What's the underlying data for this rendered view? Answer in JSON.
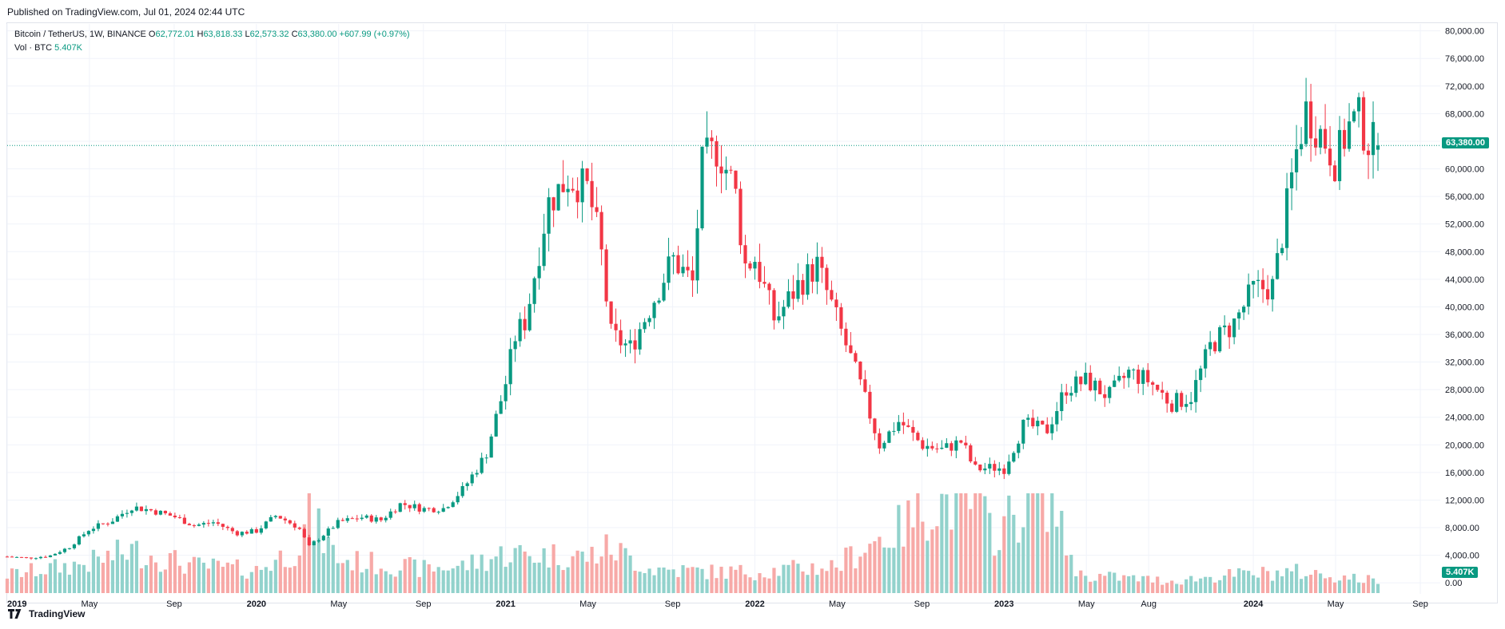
{
  "published": "Published on TradingView.com, Jul 01, 2024 02:44 UTC",
  "legend": {
    "symbol": "Bitcoin / TetherUS, 1W, BINANCE",
    "o_label": "O",
    "o": "62,772.01",
    "h_label": "H",
    "h": "63,818.33",
    "l_label": "L",
    "l": "62,573.32",
    "c_label": "C",
    "c": "63,380.00",
    "change": "+607.99 (+0.97%)",
    "vol_label": "Vol · BTC",
    "vol": "5.407K"
  },
  "last_price_badge": "63,380.00",
  "last_volume_badge": "5.407K",
  "footer_brand": "TradingView",
  "colors": {
    "up": "#089981",
    "down": "#f23645",
    "up_volume": "#92d2cc",
    "down_volume": "#f7a9a7",
    "grid": "#f0f3fa"
  },
  "chart_data": {
    "type": "candlestick",
    "interval": "1W",
    "x_axis_labels": [
      "2019",
      "May",
      "Sep",
      "2020",
      "May",
      "Sep",
      "2021",
      "May",
      "Sep",
      "2022",
      "May",
      "Sep",
      "2023",
      "May",
      "Aug",
      "2024",
      "May",
      "Sep"
    ],
    "y_axis_labels": [
      "80,000.00",
      "76,000.00",
      "72,000.00",
      "68,000.00",
      "64,000.00",
      "60,000.00",
      "56,000.00",
      "52,000.00",
      "48,000.00",
      "44,000.00",
      "40,000.00",
      "36,000.00",
      "32,000.00",
      "28,000.00",
      "24,000.00",
      "20,000.00",
      "16,000.00",
      "12,000.00",
      "8,000.00",
      "4,000.00",
      "0.00"
    ],
    "y_range": [
      -1600,
      81000
    ],
    "x_range": [
      2019.0,
      2024.75
    ],
    "last_price": 63380,
    "close_path": [
      [
        2019.0,
        3800
      ],
      [
        2019.08,
        3600
      ],
      [
        2019.17,
        3900
      ],
      [
        2019.25,
        5200
      ],
      [
        2019.33,
        7800
      ],
      [
        2019.42,
        9000
      ],
      [
        2019.5,
        11000
      ],
      [
        2019.58,
        10500
      ],
      [
        2019.67,
        9600
      ],
      [
        2019.75,
        8300
      ],
      [
        2019.83,
        8800
      ],
      [
        2019.92,
        7200
      ],
      [
        2020.0,
        7500
      ],
      [
        2020.08,
        9800
      ],
      [
        2020.17,
        8000
      ],
      [
        2020.21,
        5200
      ],
      [
        2020.33,
        8800
      ],
      [
        2020.42,
        9500
      ],
      [
        2020.5,
        9100
      ],
      [
        2020.58,
        11500
      ],
      [
        2020.67,
        10700
      ],
      [
        2020.75,
        10800
      ],
      [
        2020.83,
        13600
      ],
      [
        2020.92,
        18500
      ],
      [
        2021.0,
        29000
      ],
      [
        2021.04,
        36000
      ],
      [
        2021.08,
        38000
      ],
      [
        2021.17,
        55000
      ],
      [
        2021.25,
        58700
      ],
      [
        2021.33,
        57000
      ],
      [
        2021.38,
        49000
      ],
      [
        2021.42,
        36000
      ],
      [
        2021.5,
        34000
      ],
      [
        2021.58,
        40000
      ],
      [
        2021.67,
        47000
      ],
      [
        2021.75,
        43500
      ],
      [
        2021.79,
        61000
      ],
      [
        2021.85,
        63000
      ],
      [
        2021.92,
        57000
      ],
      [
        2021.96,
        46000
      ],
      [
        2022.0,
        47000
      ],
      [
        2022.08,
        38000
      ],
      [
        2022.17,
        43000
      ],
      [
        2022.25,
        46000
      ],
      [
        2022.33,
        38000
      ],
      [
        2022.42,
        29000
      ],
      [
        2022.5,
        20000
      ],
      [
        2022.58,
        23500
      ],
      [
        2022.67,
        20000
      ],
      [
        2022.75,
        19300
      ],
      [
        2022.83,
        20500
      ],
      [
        2022.88,
        16500
      ],
      [
        2022.96,
        16700
      ],
      [
        2023.0,
        16600
      ],
      [
        2023.08,
        23000
      ],
      [
        2023.17,
        22000
      ],
      [
        2023.25,
        28300
      ],
      [
        2023.33,
        29300
      ],
      [
        2023.42,
        27000
      ],
      [
        2023.5,
        30500
      ],
      [
        2023.58,
        29300
      ],
      [
        2023.67,
        26000
      ],
      [
        2023.75,
        27000
      ],
      [
        2023.83,
        34500
      ],
      [
        2023.92,
        37500
      ],
      [
        2024.0,
        42500
      ],
      [
        2024.08,
        43000
      ],
      [
        2024.17,
        62000
      ],
      [
        2024.21,
        68500
      ],
      [
        2024.29,
        64000
      ],
      [
        2024.33,
        61000
      ],
      [
        2024.38,
        66000
      ],
      [
        2024.42,
        67500
      ],
      [
        2024.46,
        64000
      ],
      [
        2024.5,
        63380
      ]
    ],
    "volume_path": [
      [
        2019.0,
        12
      ],
      [
        2019.33,
        20
      ],
      [
        2019.5,
        28
      ],
      [
        2019.75,
        18
      ],
      [
        2020.0,
        15
      ],
      [
        2020.17,
        30
      ],
      [
        2020.21,
        50
      ],
      [
        2020.33,
        22
      ],
      [
        2020.67,
        16
      ],
      [
        2020.83,
        18
      ],
      [
        2021.0,
        26
      ],
      [
        2021.33,
        24
      ],
      [
        2021.42,
        30
      ],
      [
        2021.58,
        16
      ],
      [
        2021.83,
        14
      ],
      [
        2022.0,
        14
      ],
      [
        2022.33,
        18
      ],
      [
        2022.45,
        32
      ],
      [
        2022.58,
        42
      ],
      [
        2022.7,
        58
      ],
      [
        2022.85,
        62
      ],
      [
        2022.96,
        40
      ],
      [
        2023.1,
        60
      ],
      [
        2023.2,
        68
      ],
      [
        2023.22,
        44
      ],
      [
        2023.3,
        12
      ],
      [
        2023.67,
        8
      ],
      [
        2023.92,
        12
      ],
      [
        2024.17,
        14
      ],
      [
        2024.5,
        8
      ]
    ]
  }
}
